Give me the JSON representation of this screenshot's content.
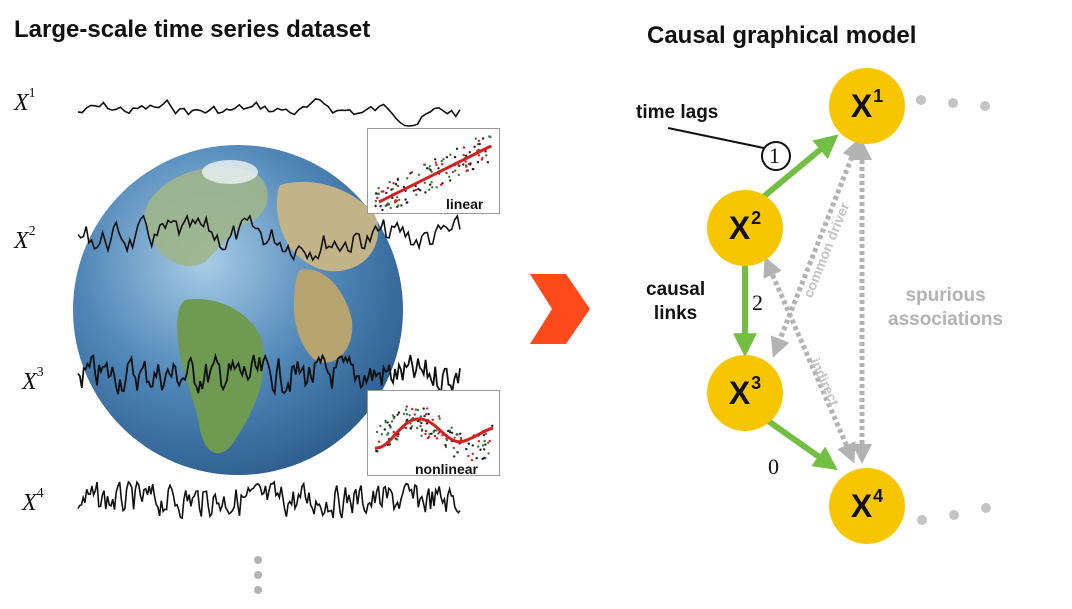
{
  "left_panel": {
    "title": "Large-scale time series dataset",
    "series_labels": [
      {
        "base": "X",
        "sup": "1"
      },
      {
        "base": "X",
        "sup": "2"
      },
      {
        "base": "X",
        "sup": "3"
      },
      {
        "base": "X",
        "sup": "4"
      }
    ],
    "insets": [
      {
        "label": "linear"
      },
      {
        "label": "nonlinear"
      }
    ]
  },
  "right_panel": {
    "title": "Causal graphical model",
    "nodes": [
      {
        "base": "X",
        "sup": "1"
      },
      {
        "base": "X",
        "sup": "2"
      },
      {
        "base": "X",
        "sup": "3"
      },
      {
        "base": "X",
        "sup": "4"
      }
    ],
    "annotations": {
      "time_lags": "time lags",
      "causal_links_line1": "causal",
      "causal_links_line2": "links",
      "spurious_line1": "spurious",
      "spurious_line2": "associations",
      "common_driver": "common driver",
      "indirect": "indirect"
    },
    "lag_values": {
      "x2_to_x1": "1",
      "x2_to_x3": "2",
      "x3_to_x4": "0"
    }
  },
  "colors": {
    "node_fill": "#f7c600",
    "causal_link": "#72bf44",
    "spurious_link": "#b3b3b3",
    "arrow_chevron": "#ff4a1c",
    "regression_line": "#d42020"
  }
}
